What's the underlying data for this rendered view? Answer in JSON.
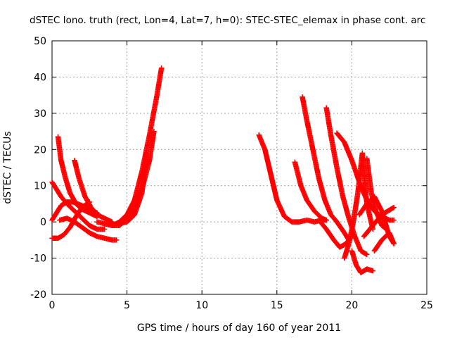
{
  "chart_data": {
    "type": "scatter",
    "title": "dSTEC Iono. truth (rect, Lon=4, Lat=7, h=0): STEC-STEC_elemax in phase cont. arc",
    "xlabel": "GPS time / hours of day 160 of year 2011",
    "ylabel": "dSTEC  / TECUs",
    "xlim": [
      0,
      25
    ],
    "ylim": [
      -20,
      50
    ],
    "xticks": [
      0,
      5,
      10,
      15,
      20,
      25
    ],
    "yticks": [
      -20,
      -10,
      0,
      10,
      20,
      30,
      40,
      50
    ],
    "grid": true,
    "marker": "plus",
    "color": "#ff0000",
    "series": [
      {
        "x": [
          0.0,
          0.3,
          0.6,
          1.0,
          1.5,
          2.0,
          2.5,
          3.0,
          3.5
        ],
        "y": [
          11,
          9,
          7,
          5,
          3,
          1,
          -1,
          -2,
          -2
        ]
      },
      {
        "x": [
          0.4,
          0.6,
          0.9,
          1.2,
          1.6,
          2.0,
          2.5,
          3.0
        ],
        "y": [
          23.5,
          17,
          12,
          8,
          5,
          3.5,
          2.5,
          1.5
        ]
      },
      {
        "x": [
          1.5,
          1.8,
          2.2,
          2.6,
          3.0,
          3.5,
          4.0
        ],
        "y": [
          17,
          12,
          7,
          4,
          2,
          1,
          0
        ]
      },
      {
        "x": [
          0.0,
          0.3,
          0.6,
          1.0,
          1.4,
          2.0,
          2.5,
          3.0
        ],
        "y": [
          0.5,
          2.5,
          4.5,
          5.5,
          5.5,
          4.5,
          3.5,
          2.5
        ]
      },
      {
        "x": [
          0.0,
          0.4,
          0.8,
          1.2,
          1.6,
          2.0,
          2.5
        ],
        "y": [
          -4.5,
          -4.5,
          -3.5,
          -1.5,
          1.5,
          4,
          5.5
        ]
      },
      {
        "x": [
          0.5,
          1.0,
          1.5,
          2.0,
          2.5,
          3.0,
          3.5,
          4.0,
          4.3
        ],
        "y": [
          0.5,
          1,
          0,
          -1.5,
          -3,
          -4,
          -4.5,
          -5,
          -5
        ]
      },
      {
        "x": [
          3.0,
          3.5,
          4.0,
          4.5,
          5.0,
          5.5,
          6.0,
          6.5,
          7.0,
          7.3
        ],
        "y": [
          0,
          -0.5,
          -1,
          0,
          2,
          6,
          14,
          24,
          35,
          42.5
        ]
      },
      {
        "x": [
          4.0,
          4.5,
          5.0,
          5.5,
          6.0,
          6.5,
          6.8
        ],
        "y": [
          -1,
          -1,
          1,
          4,
          9,
          17,
          25
        ]
      },
      {
        "x": [
          4.5,
          5.0,
          5.5,
          6.0,
          6.3
        ],
        "y": [
          -0.5,
          0,
          2,
          8,
          19
        ]
      },
      {
        "x": [
          13.8,
          14.2,
          14.6,
          15.0,
          15.5,
          16.0,
          16.5,
          17.0,
          17.5,
          18.0,
          18.3
        ],
        "y": [
          24,
          20,
          13,
          6,
          1.5,
          0,
          0,
          0.5,
          0,
          0.5,
          0.5
        ]
      },
      {
        "x": [
          16.2,
          16.6,
          17.0,
          17.5,
          18.0,
          18.3
        ],
        "y": [
          16.5,
          10,
          6,
          3,
          1,
          0.5
        ]
      },
      {
        "x": [
          16.7,
          17.0,
          17.4,
          17.8,
          18.2,
          18.6,
          19.0,
          19.5,
          19.8
        ],
        "y": [
          34.5,
          28,
          20,
          12,
          6,
          2,
          0,
          -3,
          -5
        ]
      },
      {
        "x": [
          18.3,
          18.6,
          19.0,
          19.4,
          19.8,
          20.2,
          20.6,
          21.0
        ],
        "y": [
          31.5,
          24,
          15,
          7,
          1,
          -4,
          -8,
          -9
        ]
      },
      {
        "x": [
          19.0,
          19.5,
          20.0,
          20.5,
          21.0,
          21.5,
          22.0,
          22.5,
          22.8
        ],
        "y": [
          24.5,
          22,
          17,
          11,
          6,
          3,
          1.5,
          0.5,
          0.5
        ]
      },
      {
        "x": [
          17.8,
          18.3,
          18.8,
          19.2,
          19.6,
          20.0
        ],
        "y": [
          0.5,
          -2,
          -5,
          -7,
          -6,
          -4
        ]
      },
      {
        "x": [
          19.5,
          19.8,
          20.1,
          20.4,
          20.7,
          21.0,
          21.4
        ],
        "y": [
          -10,
          -6,
          0,
          8,
          19,
          5,
          -2
        ]
      },
      {
        "x": [
          20.0,
          20.3,
          20.6,
          21.0,
          21.4
        ],
        "y": [
          -8,
          -12,
          -14,
          -13,
          -13.5
        ]
      },
      {
        "x": [
          20.5,
          21.0,
          21.5,
          22.0,
          22.5,
          22.8
        ],
        "y": [
          2,
          5,
          7,
          3,
          -4,
          -6
        ]
      },
      {
        "x": [
          21.0,
          21.3,
          21.6,
          22.0,
          22.3
        ],
        "y": [
          17.5,
          8,
          3,
          -1,
          -2
        ]
      },
      {
        "x": [
          20.8,
          21.2,
          21.6,
          22.0,
          22.4,
          22.8
        ],
        "y": [
          -4,
          -2,
          0,
          2,
          3,
          4
        ]
      },
      {
        "x": [
          21.5,
          22.0,
          22.5,
          22.8
        ],
        "y": [
          -8,
          -5,
          -3,
          -6
        ]
      }
    ]
  }
}
